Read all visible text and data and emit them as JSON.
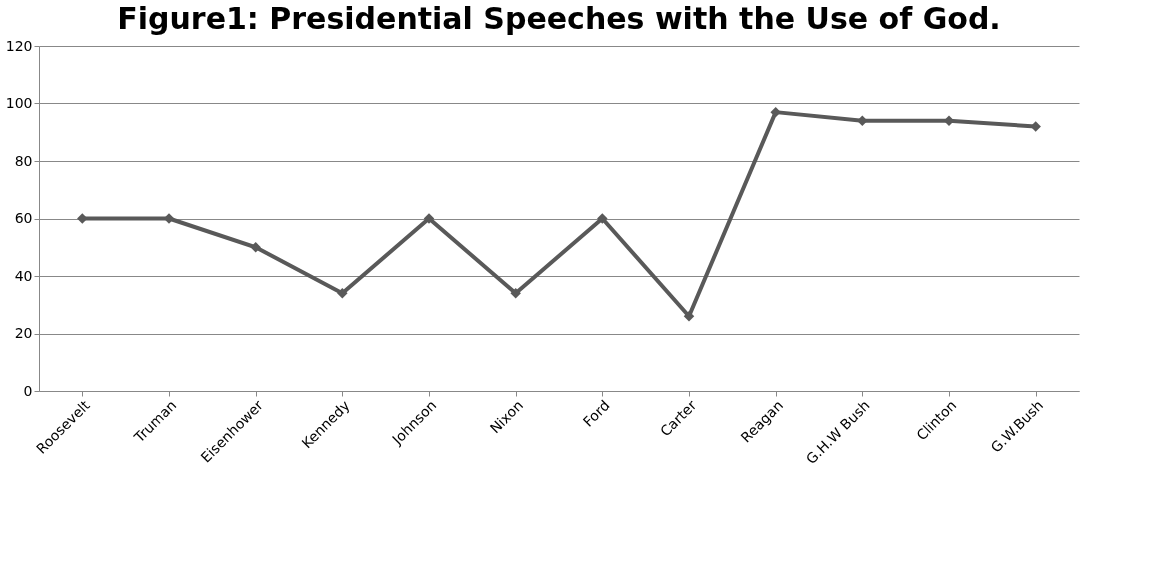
{
  "chart_data": {
    "type": "line",
    "title": "Figure1: Presidential Speeches with the Use of God.",
    "categories": [
      "Roosevelt",
      "Truman",
      "Eisenhower",
      "Kennedy",
      "Johnson",
      "Nixon",
      "Ford",
      "Carter",
      "Reagan",
      "G.H.W Bush",
      "Clinton",
      "G.W.Bush"
    ],
    "series": [
      {
        "color": "#595959",
        "values": [
          60,
          60,
          50,
          34,
          60,
          34,
          60,
          26,
          97,
          94,
          94,
          92
        ]
      }
    ],
    "ylim": [
      0,
      120
    ],
    "yticks": [
      0,
      20,
      40,
      60,
      80,
      100,
      120
    ],
    "grid": "y",
    "marker": "diamond",
    "line_style": "solid"
  }
}
